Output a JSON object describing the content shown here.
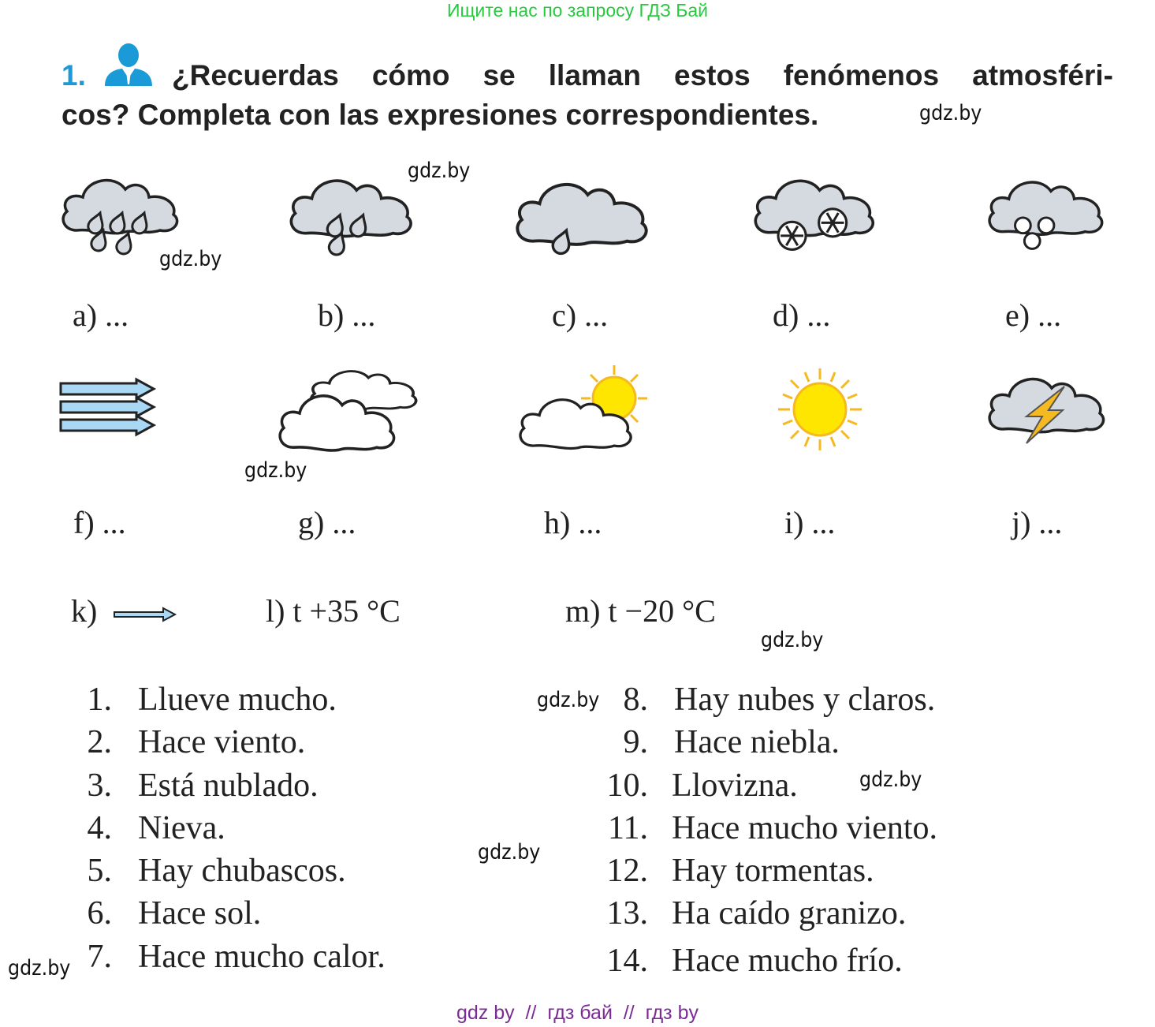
{
  "watermark_top": "Ищите нас по запросу ГДЗ Бай",
  "exercise": {
    "number": "1.",
    "icon": "person-icon",
    "line1": "¿Recuerdas cómo se llaman estos fenómenos atmosféri-",
    "line2": "cos? Completa con las expresiones correspondientes."
  },
  "pictures": [
    {
      "label": "a) ...",
      "icon": "heavy-rain-icon"
    },
    {
      "label": "b) ...",
      "icon": "rain-icon"
    },
    {
      "label": "c) ...",
      "icon": "drizzle-icon"
    },
    {
      "label": "d) ...",
      "icon": "snow-icon"
    },
    {
      "label": "e) ...",
      "icon": "hail-icon"
    },
    {
      "label": "f) ...",
      "icon": "strong-wind-icon"
    },
    {
      "label": "g) ...",
      "icon": "cloudy-icon"
    },
    {
      "label": "h) ...",
      "icon": "partly-cloudy-icon"
    },
    {
      "label": "i) ...",
      "icon": "sun-icon"
    },
    {
      "label": "j) ...",
      "icon": "thunderstorm-icon"
    }
  ],
  "extra": {
    "k": "k)",
    "k_icon": "wind-arrow-icon",
    "l": "l) t +35 °C",
    "m": "m) t −20 °C"
  },
  "expressions_left": [
    {
      "n": "1.",
      "text": "Llueve mucho."
    },
    {
      "n": "2.",
      "text": "Hace viento."
    },
    {
      "n": "3.",
      "text": "Está nublado."
    },
    {
      "n": "4.",
      "text": "Nieva."
    },
    {
      "n": "5.",
      "text": "Hay chubascos."
    },
    {
      "n": "6.",
      "text": "Hace sol."
    },
    {
      "n": "7.",
      "text": "Hace mucho calor."
    }
  ],
  "expressions_right": [
    {
      "n": "8.",
      "text": "Hay nubes y claros."
    },
    {
      "n": "9.",
      "text": "Hace niebla."
    },
    {
      "n": "10.",
      "text": "Llovizna."
    },
    {
      "n": "11.",
      "text": "Hace mucho viento."
    },
    {
      "n": "12.",
      "text": "Hay tormentas."
    },
    {
      "n": "13.",
      "text": "Ha caído granizo."
    },
    {
      "n": "14.",
      "text": "Hace mucho frío."
    }
  ],
  "watermark": "gdz.by",
  "watermark_bottom": "gdz by  //  гдз бай  //  гдз by",
  "colors": {
    "accent": "#1a9ad6",
    "cloud_gray": "#d5d9e0",
    "sun": "#ffe600",
    "sun_ray": "#f5b921",
    "arrow": "#a9d8f5",
    "top_watermark": "#27c93f",
    "bottom_watermark": "#7b2b95"
  }
}
